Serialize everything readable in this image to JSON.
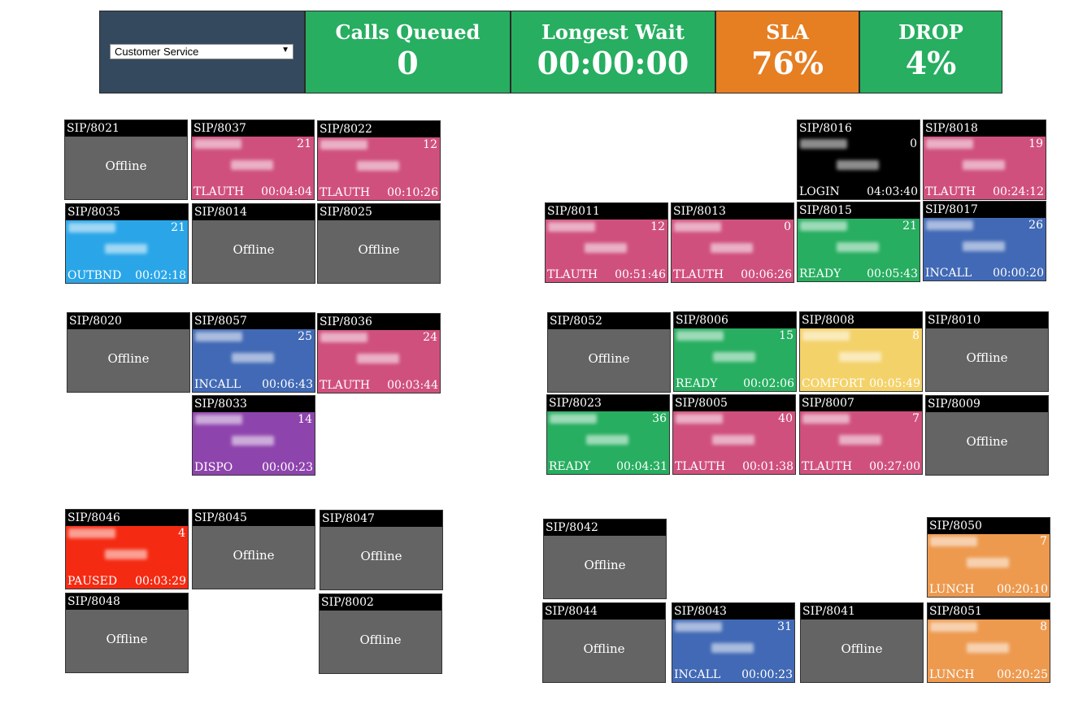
{
  "header": {
    "queue_select": "Customer Service",
    "stats": [
      {
        "label": "Calls Queued",
        "value": "0",
        "color": "#27ae60"
      },
      {
        "label": "Longest Wait",
        "value": "00:00:00",
        "color": "#27ae60"
      },
      {
        "label": "SLA",
        "value": "76%",
        "color": "#e67e22"
      },
      {
        "label": "DROP",
        "value": "4%",
        "color": "#27ae60"
      }
    ]
  },
  "agents": [
    {
      "id": "SIP/8021",
      "offline": true,
      "label": "Offline"
    },
    {
      "id": "SIP/8037",
      "offline": false,
      "count": "21",
      "status": "TLAUTH",
      "time": "00:04:04"
    },
    {
      "id": "SIP/8022",
      "offline": false,
      "count": "12",
      "status": "TLAUTH",
      "time": "00:10:26"
    },
    {
      "id": "SIP/8035",
      "offline": false,
      "count": "21",
      "status": "OUTBND",
      "time": "00:02:18"
    },
    {
      "id": "SIP/8014",
      "offline": true,
      "label": "Offline"
    },
    {
      "id": "SIP/8025",
      "offline": true,
      "label": "Offline"
    },
    {
      "id": "SIP/8016",
      "offline": false,
      "count": "0",
      "status": "LOGIN",
      "time": "04:03:40"
    },
    {
      "id": "SIP/8018",
      "offline": false,
      "count": "19",
      "status": "TLAUTH",
      "time": "00:24:12"
    },
    {
      "id": "SIP/8011",
      "offline": false,
      "count": "12",
      "status": "TLAUTH",
      "time": "00:51:46"
    },
    {
      "id": "SIP/8013",
      "offline": false,
      "count": "0",
      "status": "TLAUTH",
      "time": "00:06:26"
    },
    {
      "id": "SIP/8015",
      "offline": false,
      "count": "21",
      "status": "READY",
      "time": "00:05:43"
    },
    {
      "id": "SIP/8017",
      "offline": false,
      "count": "26",
      "status": "INCALL",
      "time": "00:00:20"
    },
    {
      "id": "SIP/8020",
      "offline": true,
      "label": "Offline"
    },
    {
      "id": "SIP/8057",
      "offline": false,
      "count": "25",
      "status": "INCALL",
      "time": "00:06:43"
    },
    {
      "id": "SIP/8036",
      "offline": false,
      "count": "24",
      "status": "TLAUTH",
      "time": "00:03:44"
    },
    {
      "id": "SIP/8033",
      "offline": false,
      "count": "14",
      "status": "DISPO",
      "time": "00:00:23"
    },
    {
      "id": "SIP/8052",
      "offline": true,
      "label": "Offline"
    },
    {
      "id": "SIP/8006",
      "offline": false,
      "count": "15",
      "status": "READY",
      "time": "00:02:06"
    },
    {
      "id": "SIP/8008",
      "offline": false,
      "count": "8",
      "status": "COMFORT",
      "time": "00:05:49"
    },
    {
      "id": "SIP/8010",
      "offline": true,
      "label": "Offline"
    },
    {
      "id": "SIP/8023",
      "offline": false,
      "count": "36",
      "status": "READY",
      "time": "00:04:31"
    },
    {
      "id": "SIP/8005",
      "offline": false,
      "count": "40",
      "status": "TLAUTH",
      "time": "00:01:38"
    },
    {
      "id": "SIP/8007",
      "offline": false,
      "count": "7",
      "status": "TLAUTH",
      "time": "00:27:00"
    },
    {
      "id": "SIP/8009",
      "offline": true,
      "label": "Offline"
    },
    {
      "id": "SIP/8046",
      "offline": false,
      "count": "4",
      "status": "PAUSED",
      "time": "00:03:29"
    },
    {
      "id": "SIP/8045",
      "offline": true,
      "label": "Offline"
    },
    {
      "id": "SIP/8047",
      "offline": true,
      "label": "Offline"
    },
    {
      "id": "SIP/8048",
      "offline": true,
      "label": "Offline"
    },
    {
      "id": "SIP/8002",
      "offline": true,
      "label": "Offline"
    },
    {
      "id": "SIP/8042",
      "offline": true,
      "label": "Offline"
    },
    {
      "id": "SIP/8050",
      "offline": false,
      "count": "7",
      "status": "LUNCH",
      "time": "00:20:10"
    },
    {
      "id": "SIP/8044",
      "offline": true,
      "label": "Offline"
    },
    {
      "id": "SIP/8043",
      "offline": false,
      "count": "31",
      "status": "INCALL",
      "time": "00:00:23"
    },
    {
      "id": "SIP/8041",
      "offline": true,
      "label": "Offline"
    },
    {
      "id": "SIP/8051",
      "offline": false,
      "count": "8",
      "status": "LUNCH",
      "time": "00:20:25"
    }
  ]
}
